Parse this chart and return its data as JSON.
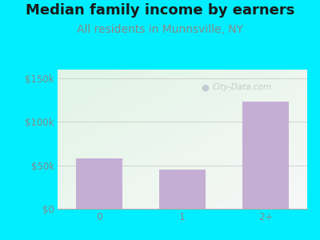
{
  "title": "Median family income by earners",
  "subtitle": "All residents in Munnsville, NY",
  "categories": [
    "0",
    "1",
    "2+"
  ],
  "values": [
    58000,
    45000,
    123000
  ],
  "bar_color": "#c4aed4",
  "background_color": "#00eeff",
  "plot_bg_color_tl": [
    0.88,
    0.96,
    0.9
  ],
  "plot_bg_color_br": [
    0.97,
    0.97,
    0.97
  ],
  "yticks": [
    0,
    50000,
    100000,
    150000
  ],
  "ytick_labels": [
    "$0",
    "$50k",
    "$100k",
    "$150k"
  ],
  "ylim": [
    0,
    160000
  ],
  "title_color": "#1a1a1a",
  "subtitle_color": "#888888",
  "axis_tick_color": "#888888",
  "watermark": "City-Data.com",
  "title_fontsize": 13,
  "subtitle_fontsize": 10,
  "tick_fontsize": 8.5
}
